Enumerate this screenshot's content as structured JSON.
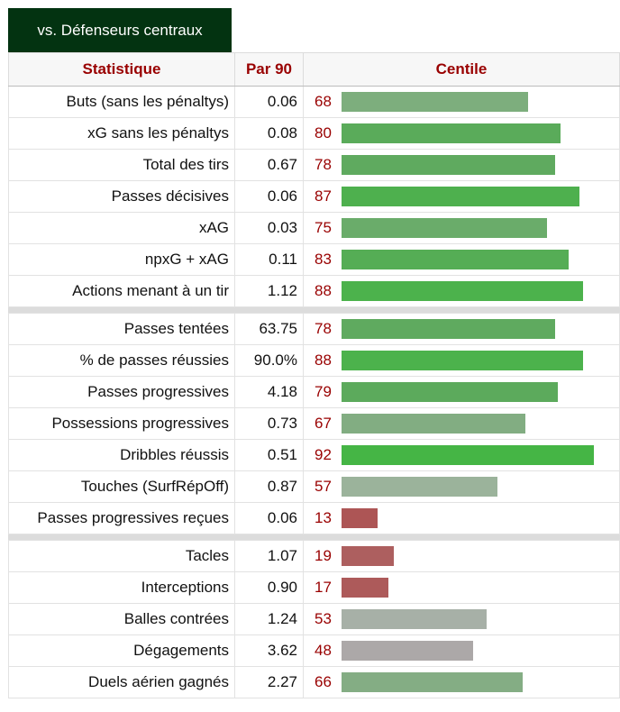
{
  "tab": {
    "label": "vs. Défenseurs centraux"
  },
  "table": {
    "headers": {
      "stat": "Statistique",
      "per90": "Par 90",
      "percentile": "Centile"
    },
    "groups": [
      [
        {
          "stat": "Buts (sans les pénaltys)",
          "per90": "0.06",
          "pct": 68,
          "color": "#7dae7d"
        },
        {
          "stat": "xG sans les pénaltys",
          "per90": "0.08",
          "pct": 80,
          "color": "#5aab5a"
        },
        {
          "stat": "Total des tirs",
          "per90": "0.67",
          "pct": 78,
          "color": "#5faa5f"
        },
        {
          "stat": "Passes décisives",
          "per90": "0.06",
          "pct": 87,
          "color": "#4eb04e"
        },
        {
          "stat": "xAG",
          "per90": "0.03",
          "pct": 75,
          "color": "#6aac6a"
        },
        {
          "stat": "npxG + xAG",
          "per90": "0.11",
          "pct": 83,
          "color": "#55ad55"
        },
        {
          "stat": "Actions menant à un tir",
          "per90": "1.12",
          "pct": 88,
          "color": "#4cb24c"
        }
      ],
      [
        {
          "stat": "Passes tentées",
          "per90": "63.75",
          "pct": 78,
          "color": "#5faa5f"
        },
        {
          "stat": "% de passes réussies",
          "per90": "90.0%",
          "pct": 88,
          "color": "#4cb24c"
        },
        {
          "stat": "Passes progressives",
          "per90": "4.18",
          "pct": 79,
          "color": "#5caa5c"
        },
        {
          "stat": "Possessions progressives",
          "per90": "0.73",
          "pct": 67,
          "color": "#82ad82"
        },
        {
          "stat": "Dribbles réussis",
          "per90": "0.51",
          "pct": 92,
          "color": "#45b545"
        },
        {
          "stat": "Touches (SurfRépOff)",
          "per90": "0.87",
          "pct": 57,
          "color": "#9bb39b"
        },
        {
          "stat": "Passes progressives reçues",
          "per90": "0.06",
          "pct": 13,
          "color": "#ad5555"
        }
      ],
      [
        {
          "stat": "Tacles",
          "per90": "1.07",
          "pct": 19,
          "color": "#ad5f5f"
        },
        {
          "stat": "Interceptions",
          "per90": "0.90",
          "pct": 17,
          "color": "#ad5a5a"
        },
        {
          "stat": "Balles contrées",
          "per90": "1.24",
          "pct": 53,
          "color": "#a7b0a7"
        },
        {
          "stat": "Dégagements",
          "per90": "3.62",
          "pct": 48,
          "color": "#aca8a8"
        },
        {
          "stat": "Duels aérien gagnés",
          "per90": "2.27",
          "pct": 66,
          "color": "#84ad84"
        }
      ]
    ]
  }
}
